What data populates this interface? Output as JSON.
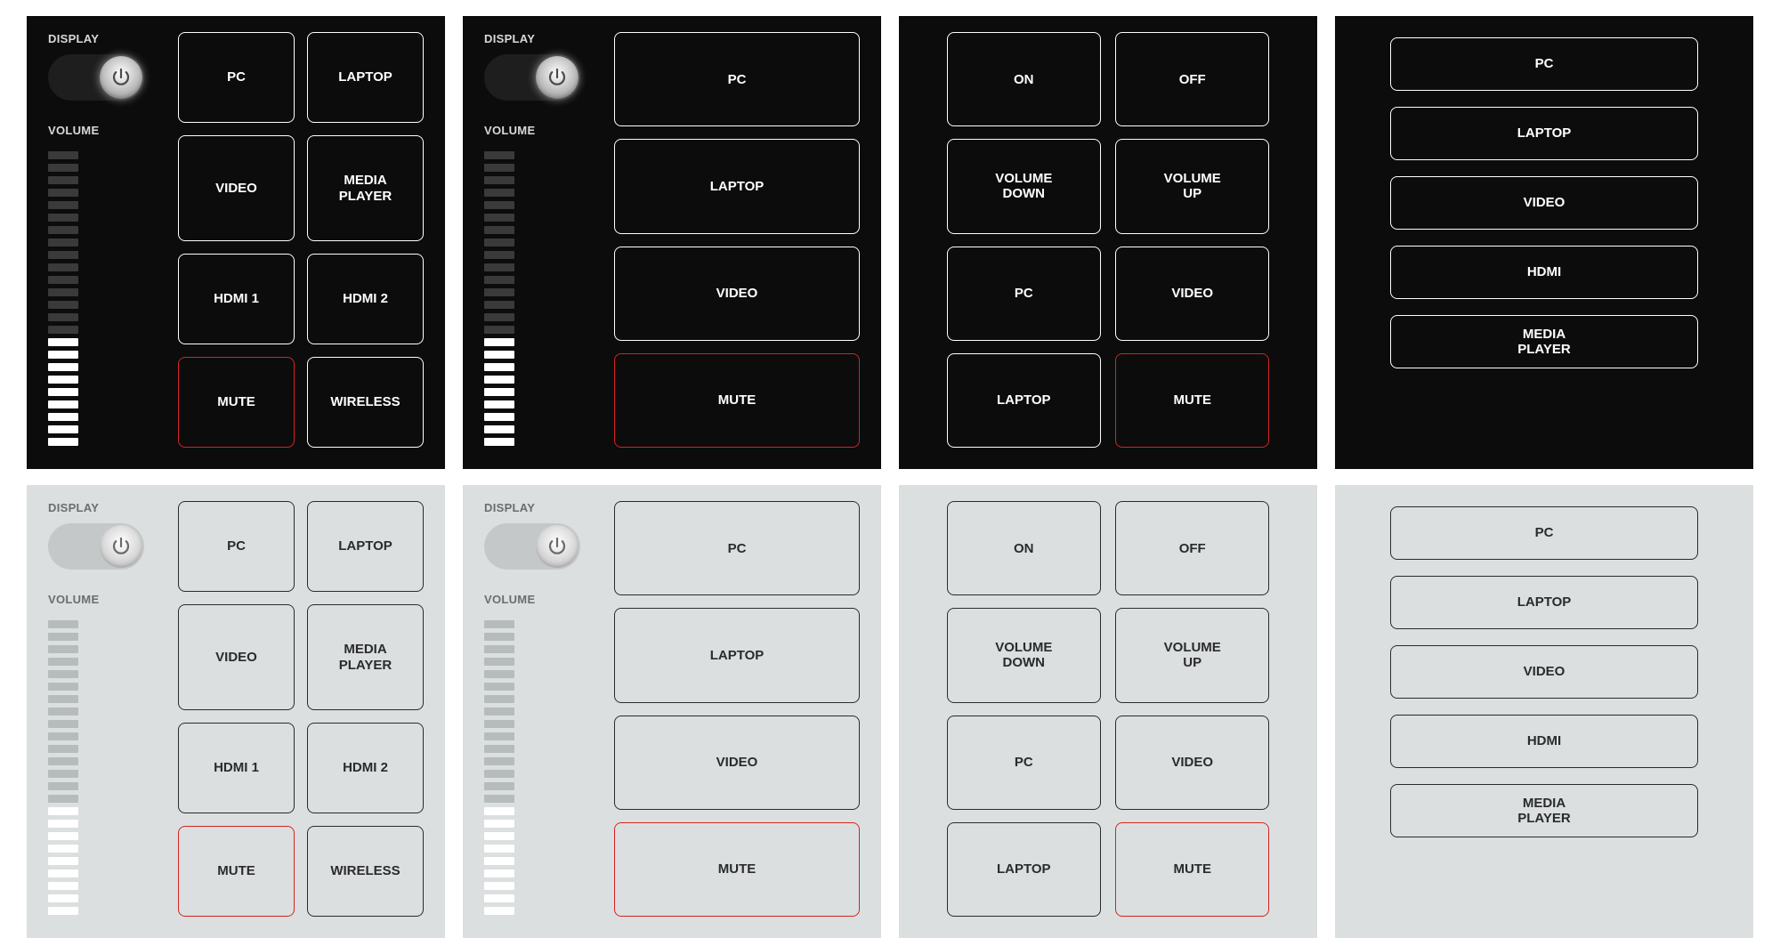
{
  "themes": {
    "dark": {
      "bg": "#0c0c0c",
      "fg": "#ffffff",
      "btn_border": "#ffffff",
      "mute_border": "#d42424"
    },
    "light": {
      "bg": "#dbdfdf",
      "fg": "#2b2b2b",
      "btn_border": "#2b2b2b",
      "mute_border": "#d42424"
    }
  },
  "labels": {
    "display": "DISPLAY",
    "volume": "VOLUME"
  },
  "volume_meter": {
    "segments": 24,
    "filled": 9
  },
  "layoutA": {
    "type": "4x2-sources-with-display-and-volume",
    "buttons": [
      {
        "id": "pc",
        "label": "PC"
      },
      {
        "id": "laptop",
        "label": "LAPTOP"
      },
      {
        "id": "video",
        "label": "VIDEO"
      },
      {
        "id": "media-player",
        "label": "MEDIA PLAYER"
      },
      {
        "id": "hdmi-1",
        "label": "HDMI 1"
      },
      {
        "id": "hdmi-2",
        "label": "HDMI 2"
      },
      {
        "id": "mute",
        "label": "MUTE",
        "mute": true
      },
      {
        "id": "wireless",
        "label": "WIRELESS"
      }
    ]
  },
  "layoutB": {
    "type": "4x1-sources-with-display-and-volume",
    "buttons": [
      {
        "id": "pc",
        "label": "PC"
      },
      {
        "id": "laptop",
        "label": "LAPTOP"
      },
      {
        "id": "video",
        "label": "VIDEO"
      },
      {
        "id": "mute",
        "label": "MUTE",
        "mute": true
      }
    ]
  },
  "layoutC": {
    "type": "4x2-controls",
    "buttons": [
      {
        "id": "on",
        "label": "ON"
      },
      {
        "id": "off",
        "label": "OFF"
      },
      {
        "id": "volume-down",
        "label": "VOLUME DOWN"
      },
      {
        "id": "volume-up",
        "label": "VOLUME UP"
      },
      {
        "id": "pc",
        "label": "PC"
      },
      {
        "id": "video",
        "label": "VIDEO"
      },
      {
        "id": "laptop",
        "label": "LAPTOP"
      },
      {
        "id": "mute",
        "label": "MUTE",
        "mute": true
      }
    ]
  },
  "layoutD": {
    "type": "5x1-wide-sources",
    "buttons": [
      {
        "id": "pc",
        "label": "PC"
      },
      {
        "id": "laptop",
        "label": "LAPTOP"
      },
      {
        "id": "video",
        "label": "VIDEO"
      },
      {
        "id": "hdmi",
        "label": "HDMI"
      },
      {
        "id": "media-player",
        "label": "MEDIA PLAYER"
      }
    ]
  }
}
